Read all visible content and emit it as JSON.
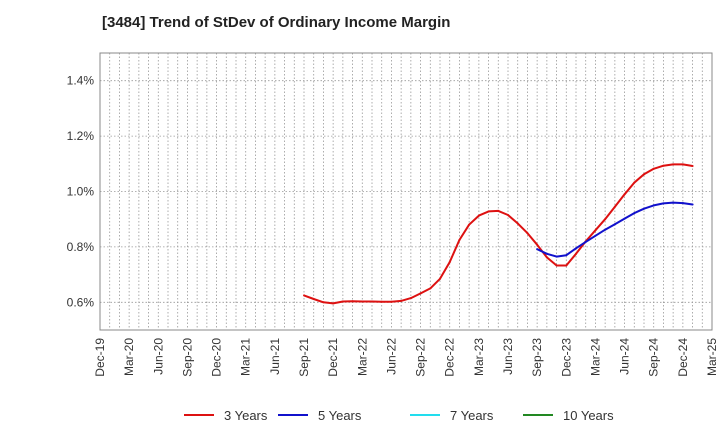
{
  "chart_data": {
    "type": "line",
    "title": "[3484]  Trend of StDev of Ordinary Income Margin",
    "xlabel": "",
    "ylabel": "",
    "ylim": [
      0.5,
      1.5
    ],
    "grid": true,
    "legend_position": "bottom",
    "x_ticks": [
      "Dec-19",
      "Mar-20",
      "Jun-20",
      "Sep-20",
      "Dec-20",
      "Mar-21",
      "Jun-21",
      "Sep-21",
      "Dec-21",
      "Mar-22",
      "Jun-22",
      "Sep-22",
      "Dec-22",
      "Mar-23",
      "Jun-23",
      "Sep-23",
      "Dec-23",
      "Mar-24",
      "Jun-24",
      "Sep-24",
      "Dec-24",
      "Mar-25"
    ],
    "y_ticks": [
      {
        "value": 0.6,
        "label": "0.6%"
      },
      {
        "value": 0.8,
        "label": "0.8%"
      },
      {
        "value": 1.0,
        "label": "1.0%"
      },
      {
        "value": 1.2,
        "label": "1.2%"
      },
      {
        "value": 1.4,
        "label": "1.4%"
      }
    ],
    "series": [
      {
        "name": "3 Years",
        "color": "#dd1111",
        "points": [
          [
            "Sep-21",
            0.625
          ],
          [
            "Oct-21",
            0.612
          ],
          [
            "Nov-21",
            0.6
          ],
          [
            "Dec-21",
            0.596
          ],
          [
            "Jan-22",
            0.603
          ],
          [
            "Feb-22",
            0.604
          ],
          [
            "Mar-22",
            0.603
          ],
          [
            "Apr-22",
            0.603
          ],
          [
            "May-22",
            0.602
          ],
          [
            "Jun-22",
            0.602
          ],
          [
            "Jul-22",
            0.605
          ],
          [
            "Aug-22",
            0.615
          ],
          [
            "Sep-22",
            0.632
          ],
          [
            "Oct-22",
            0.65
          ],
          [
            "Nov-22",
            0.685
          ],
          [
            "Dec-22",
            0.745
          ],
          [
            "Jan-23",
            0.825
          ],
          [
            "Feb-23",
            0.88
          ],
          [
            "Mar-23",
            0.913
          ],
          [
            "Apr-23",
            0.928
          ],
          [
            "May-23",
            0.93
          ],
          [
            "Jun-23",
            0.915
          ],
          [
            "Jul-23",
            0.885
          ],
          [
            "Aug-23",
            0.85
          ],
          [
            "Sep-23",
            0.808
          ],
          [
            "Oct-23",
            0.762
          ],
          [
            "Nov-23",
            0.733
          ],
          [
            "Dec-23",
            0.733
          ],
          [
            "Jan-24",
            0.775
          ],
          [
            "Feb-24",
            0.82
          ],
          [
            "Mar-24",
            0.86
          ],
          [
            "Apr-24",
            0.9
          ],
          [
            "May-24",
            0.945
          ],
          [
            "Jun-24",
            0.99
          ],
          [
            "Jul-24",
            1.032
          ],
          [
            "Aug-24",
            1.062
          ],
          [
            "Sep-24",
            1.082
          ],
          [
            "Oct-24",
            1.093
          ],
          [
            "Nov-24",
            1.098
          ],
          [
            "Dec-24",
            1.098
          ],
          [
            "Jan-25",
            1.092
          ]
        ]
      },
      {
        "name": "5 Years",
        "color": "#1111cc",
        "points": [
          [
            "Sep-23",
            0.792
          ],
          [
            "Oct-23",
            0.775
          ],
          [
            "Nov-23",
            0.765
          ],
          [
            "Dec-23",
            0.77
          ],
          [
            "Jan-24",
            0.795
          ],
          [
            "Feb-24",
            0.818
          ],
          [
            "Mar-24",
            0.84
          ],
          [
            "Apr-24",
            0.862
          ],
          [
            "May-24",
            0.882
          ],
          [
            "Jun-24",
            0.902
          ],
          [
            "Jul-24",
            0.922
          ],
          [
            "Aug-24",
            0.938
          ],
          [
            "Sep-24",
            0.95
          ],
          [
            "Oct-24",
            0.957
          ],
          [
            "Nov-24",
            0.96
          ],
          [
            "Dec-24",
            0.958
          ],
          [
            "Jan-25",
            0.953
          ]
        ]
      },
      {
        "name": "7 Years",
        "color": "#22ddee",
        "points": []
      },
      {
        "name": "10 Years",
        "color": "#228822",
        "points": []
      }
    ]
  }
}
